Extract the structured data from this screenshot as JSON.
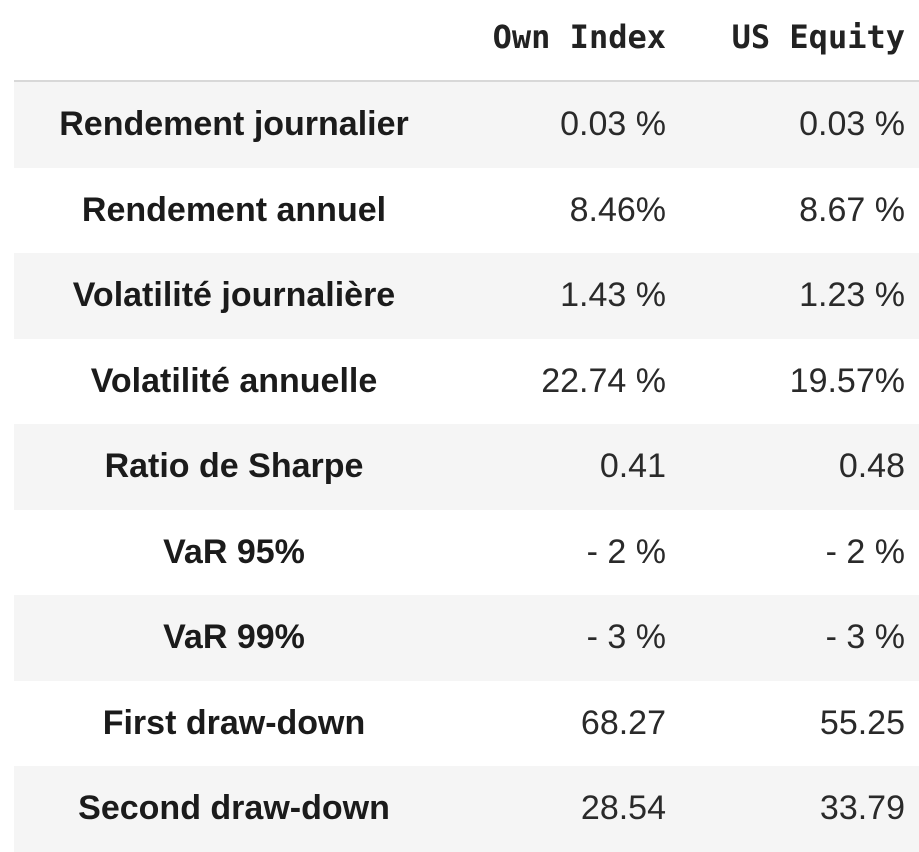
{
  "table": {
    "columns": [
      "",
      "Own Index",
      "US Equity"
    ],
    "rows": [
      {
        "label": "Rendement journalier",
        "own_index": "0.03 %",
        "us_equity": "0.03 %"
      },
      {
        "label": "Rendement annuel",
        "own_index": "8.46%",
        "us_equity": "8.67 %"
      },
      {
        "label": "Volatilité journalière",
        "own_index": "1.43 %",
        "us_equity": "1.23 %"
      },
      {
        "label": "Volatilité annuelle",
        "own_index": "22.74 %",
        "us_equity": "19.57%"
      },
      {
        "label": "Ratio de Sharpe",
        "own_index": "0.41",
        "us_equity": "0.48"
      },
      {
        "label": "VaR 95%",
        "own_index": "- 2 %",
        "us_equity": "- 2 %"
      },
      {
        "label": "VaR 99%",
        "own_index": "- 3 %",
        "us_equity": "- 3 %"
      },
      {
        "label": "First draw-down",
        "own_index": "68.27",
        "us_equity": "55.25"
      },
      {
        "label": "Second draw-down",
        "own_index": "28.54",
        "us_equity": "33.79"
      }
    ]
  }
}
